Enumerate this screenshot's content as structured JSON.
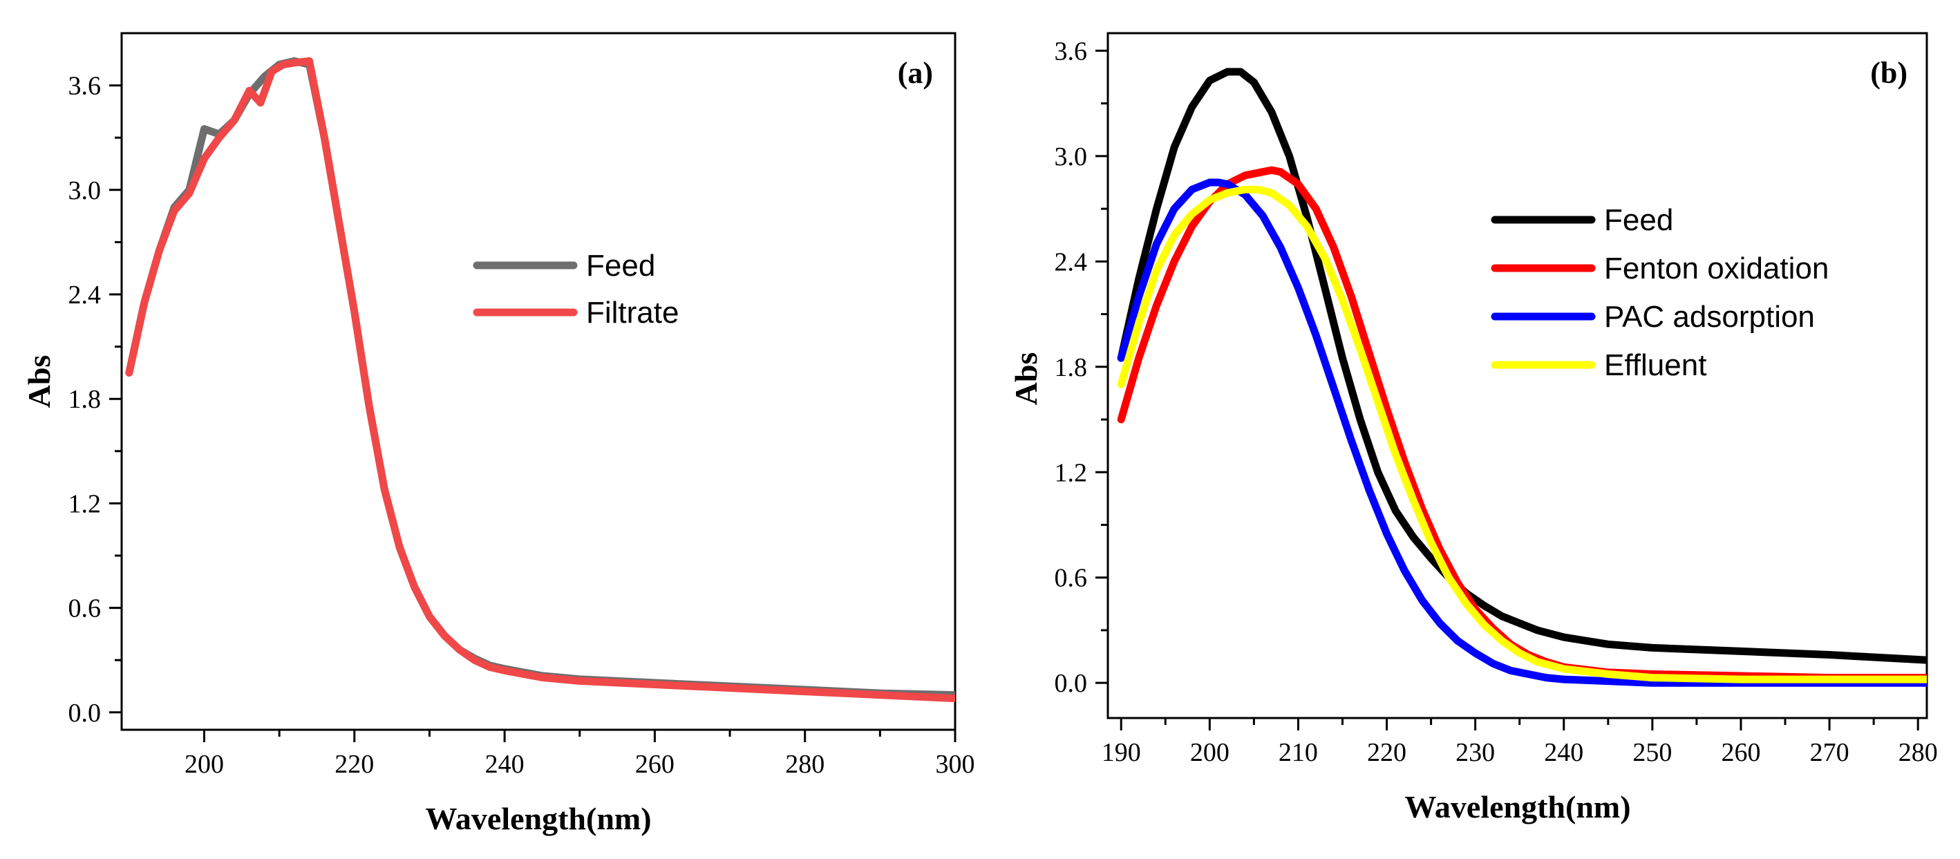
{
  "chart_data": [
    {
      "type": "line",
      "panel_label": "(a)",
      "xlabel": "Wavelength(nm)",
      "ylabel": "Abs",
      "xlim": [
        189,
        300
      ],
      "ylim": [
        -0.1,
        3.9
      ],
      "xticks": [
        200,
        220,
        240,
        260,
        280,
        300
      ],
      "yticks": [
        0.0,
        0.6,
        1.2,
        1.8,
        2.4,
        3.0,
        3.6
      ],
      "x_tick_labels": [
        "200",
        "220",
        "240",
        "260",
        "280",
        "300"
      ],
      "y_tick_labels": [
        "0.0",
        "0.6",
        "1.2",
        "1.8",
        "2.4",
        "3.0",
        "3.6"
      ],
      "legend_position": "center-right",
      "series": [
        {
          "name": "Feed",
          "color": "#6e6e6e",
          "x": [
            190,
            192,
            194,
            196,
            198,
            200,
            202,
            204,
            206,
            208,
            210,
            212,
            214,
            216,
            218,
            220,
            222,
            224,
            226,
            228,
            230,
            232,
            234,
            236,
            238,
            240,
            245,
            250,
            260,
            270,
            280,
            290,
            300
          ],
          "y": [
            1.95,
            2.35,
            2.65,
            2.9,
            3.0,
            3.35,
            3.32,
            3.4,
            3.55,
            3.65,
            3.72,
            3.74,
            3.72,
            3.3,
            2.8,
            2.3,
            1.75,
            1.28,
            0.95,
            0.72,
            0.55,
            0.44,
            0.36,
            0.31,
            0.27,
            0.25,
            0.21,
            0.19,
            0.17,
            0.15,
            0.13,
            0.11,
            0.1
          ]
        },
        {
          "name": "Filtrate",
          "color": "#f04848",
          "x": [
            190,
            192,
            194,
            196,
            198,
            200,
            202,
            204,
            206,
            207.5,
            209,
            210.5,
            212,
            214,
            216,
            218,
            220,
            222,
            224,
            226,
            228,
            230,
            232,
            234,
            236,
            238,
            240,
            245,
            250,
            260,
            270,
            280,
            290,
            300
          ],
          "y": [
            1.95,
            2.35,
            2.65,
            2.88,
            2.98,
            3.18,
            3.3,
            3.4,
            3.57,
            3.5,
            3.68,
            3.72,
            3.73,
            3.74,
            3.3,
            2.8,
            2.3,
            1.75,
            1.28,
            0.95,
            0.72,
            0.55,
            0.44,
            0.36,
            0.3,
            0.26,
            0.24,
            0.2,
            0.18,
            0.16,
            0.14,
            0.12,
            0.1,
            0.08
          ]
        }
      ]
    },
    {
      "type": "line",
      "panel_label": "(b)",
      "xlabel": "Wavelength(nm)",
      "ylabel": "Abs",
      "xlim": [
        188.5,
        281
      ],
      "ylim": [
        -0.2,
        3.7
      ],
      "xticks": [
        190,
        200,
        210,
        220,
        230,
        240,
        250,
        260,
        270,
        280
      ],
      "yticks": [
        0.0,
        0.6,
        1.2,
        1.8,
        2.4,
        3.0,
        3.6
      ],
      "x_tick_labels": [
        "190",
        "200",
        "210",
        "220",
        "230",
        "240",
        "250",
        "260",
        "270",
        "280"
      ],
      "y_tick_labels": [
        "0.0",
        "0.6",
        "1.2",
        "1.8",
        "2.4",
        "3.0",
        "3.6"
      ],
      "legend_position": "center-right",
      "series": [
        {
          "name": "Feed",
          "color": "#000000",
          "x": [
            190,
            192,
            194,
            196,
            198,
            200,
            202,
            203.5,
            205,
            207,
            209,
            211,
            213,
            215,
            217,
            219,
            221,
            223,
            225,
            227,
            229,
            231,
            233,
            235,
            237,
            240,
            245,
            250,
            260,
            270,
            281
          ],
          "y": [
            1.85,
            2.3,
            2.7,
            3.05,
            3.28,
            3.43,
            3.48,
            3.48,
            3.42,
            3.25,
            3.0,
            2.65,
            2.25,
            1.85,
            1.5,
            1.2,
            0.98,
            0.83,
            0.71,
            0.6,
            0.51,
            0.44,
            0.38,
            0.34,
            0.3,
            0.26,
            0.22,
            0.2,
            0.18,
            0.16,
            0.13
          ]
        },
        {
          "name": "Fenton oxidation",
          "color": "#ff0000",
          "x": [
            190,
            192,
            194,
            196,
            198,
            200,
            202,
            204,
            206,
            207,
            208,
            210,
            212,
            214,
            216,
            218,
            220,
            222,
            224,
            226,
            228,
            230,
            232,
            234,
            236,
            238,
            240,
            245,
            250,
            260,
            270,
            281
          ],
          "y": [
            1.5,
            1.85,
            2.15,
            2.4,
            2.6,
            2.74,
            2.84,
            2.89,
            2.91,
            2.92,
            2.91,
            2.84,
            2.7,
            2.48,
            2.2,
            1.88,
            1.56,
            1.26,
            0.99,
            0.76,
            0.57,
            0.42,
            0.31,
            0.22,
            0.16,
            0.12,
            0.09,
            0.06,
            0.05,
            0.04,
            0.03,
            0.03
          ]
        },
        {
          "name": "PAC adsorption",
          "color": "#0000ff",
          "x": [
            190,
            192,
            194,
            196,
            198,
            200,
            201,
            202,
            204,
            206,
            208,
            210,
            212,
            214,
            216,
            218,
            220,
            222,
            224,
            226,
            228,
            230,
            232,
            234,
            236,
            238,
            240,
            245,
            250,
            260,
            270,
            281
          ],
          "y": [
            1.85,
            2.2,
            2.5,
            2.7,
            2.81,
            2.85,
            2.85,
            2.84,
            2.78,
            2.66,
            2.48,
            2.25,
            1.98,
            1.68,
            1.38,
            1.1,
            0.85,
            0.64,
            0.47,
            0.34,
            0.24,
            0.17,
            0.11,
            0.07,
            0.05,
            0.03,
            0.02,
            0.01,
            0.0,
            0.0,
            0.0,
            0.0
          ]
        },
        {
          "name": "Effluent",
          "color": "#ffff00",
          "x": [
            190,
            192,
            194,
            196,
            198,
            200,
            202,
            204,
            205.5,
            207,
            209,
            211,
            213,
            215,
            217,
            219,
            221,
            223,
            225,
            227,
            229,
            231,
            233,
            235,
            237,
            240,
            245,
            250,
            260,
            270,
            281
          ],
          "y": [
            1.7,
            2.05,
            2.35,
            2.55,
            2.67,
            2.75,
            2.79,
            2.81,
            2.81,
            2.79,
            2.72,
            2.6,
            2.42,
            2.18,
            1.9,
            1.6,
            1.3,
            1.04,
            0.8,
            0.6,
            0.45,
            0.33,
            0.24,
            0.17,
            0.12,
            0.08,
            0.05,
            0.03,
            0.02,
            0.02,
            0.02
          ]
        }
      ]
    }
  ]
}
